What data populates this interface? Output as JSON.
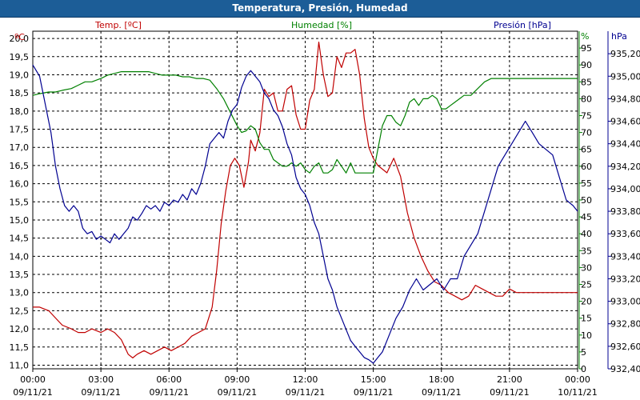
{
  "window": {
    "title": "Temperatura, Presión, Humedad"
  },
  "colors": {
    "temperature": "#c00000",
    "humidity": "#008000",
    "pressure": "#000090",
    "grid": "#000000"
  },
  "chart_data": {
    "type": "line",
    "title": "Temperatura, Presión, Humedad",
    "x_axis": {
      "range_hours": [
        0,
        24
      ],
      "ticks": [
        {
          "time": "00:00",
          "date": "09/11/21"
        },
        {
          "time": "03:00",
          "date": "09/11/21"
        },
        {
          "time": "06:00",
          "date": "09/11/21"
        },
        {
          "time": "09:00",
          "date": "09/11/21"
        },
        {
          "time": "12:00",
          "date": "09/11/21"
        },
        {
          "time": "15:00",
          "date": "09/11/21"
        },
        {
          "time": "18:00",
          "date": "09/11/21"
        },
        {
          "time": "21:00",
          "date": "09/11/21"
        },
        {
          "time": "00:00",
          "date": "10/11/21"
        }
      ]
    },
    "axes": {
      "temperature": {
        "label": "Temp. [ºC]",
        "unit": "ºC",
        "ylim": [
          10.9,
          20.2
        ],
        "ticks": [
          "11,0",
          "11,5",
          "12,0",
          "12,5",
          "13,0",
          "13,5",
          "14,0",
          "14,5",
          "15,0",
          "15,5",
          "16,0",
          "16,5",
          "17,0",
          "17,5",
          "18,0",
          "18,5",
          "19,0",
          "19,5",
          "20,0"
        ]
      },
      "humidity": {
        "label": "Humedad [%]",
        "unit": "%",
        "ylim": [
          0,
          100
        ],
        "ticks": [
          "0",
          "5",
          "10",
          "15",
          "20",
          "25",
          "30",
          "35",
          "40",
          "45",
          "50",
          "55",
          "60",
          "65",
          "70",
          "75",
          "80",
          "85",
          "90",
          "95"
        ]
      },
      "pressure": {
        "label": "Presión [hPa]",
        "unit": "hPa",
        "ylim": [
          932.4,
          935.4
        ],
        "ticks": [
          "932,40",
          "932,60",
          "932,80",
          "933,00",
          "933,20",
          "933,40",
          "933,60",
          "933,80",
          "934,00",
          "934,20",
          "934,40",
          "934,60",
          "934,80",
          "935,00",
          "935,20"
        ]
      }
    },
    "series": [
      {
        "name": "Temp. [ºC]",
        "axis": "temperature",
        "x": [
          0,
          0.3,
          0.7,
          1.0,
          1.3,
          1.7,
          2.0,
          2.3,
          2.6,
          3.0,
          3.3,
          3.6,
          3.9,
          4.2,
          4.4,
          4.6,
          4.9,
          5.2,
          5.5,
          5.8,
          6.1,
          6.4,
          6.7,
          7.0,
          7.3,
          7.6,
          7.9,
          8.1,
          8.3,
          8.5,
          8.7,
          8.9,
          9.1,
          9.3,
          9.5,
          9.6,
          9.8,
          10.0,
          10.2,
          10.4,
          10.6,
          10.8,
          11.0,
          11.2,
          11.4,
          11.6,
          11.8,
          12.0,
          12.2,
          12.4,
          12.6,
          12.8,
          13.0,
          13.2,
          13.4,
          13.6,
          13.8,
          14.0,
          14.2,
          14.4,
          14.6,
          14.8,
          15.0,
          15.2,
          15.4,
          15.6,
          15.9,
          16.2,
          16.5,
          16.8,
          17.1,
          17.4,
          17.7,
          18.0,
          18.3,
          18.6,
          18.9,
          19.2,
          19.5,
          19.8,
          20.1,
          20.4,
          20.7,
          21.0,
          21.3,
          21.6,
          21.9,
          22.2,
          22.5,
          22.8,
          23.1,
          23.4,
          23.7,
          24.0
        ],
        "values": [
          12.6,
          12.6,
          12.5,
          12.3,
          12.1,
          12.0,
          11.9,
          11.9,
          12.0,
          11.9,
          12.0,
          11.9,
          11.7,
          11.3,
          11.2,
          11.3,
          11.4,
          11.3,
          11.4,
          11.5,
          11.4,
          11.5,
          11.6,
          11.8,
          11.9,
          12.0,
          12.6,
          13.6,
          14.9,
          15.8,
          16.5,
          16.7,
          16.5,
          15.9,
          16.6,
          17.2,
          16.9,
          17.4,
          18.6,
          18.4,
          18.5,
          18.0,
          18.0,
          18.6,
          18.7,
          17.9,
          17.5,
          17.5,
          18.3,
          18.6,
          19.9,
          19.0,
          18.4,
          18.5,
          19.5,
          19.2,
          19.6,
          19.6,
          19.7,
          19.0,
          17.8,
          17.0,
          16.7,
          16.5,
          16.4,
          16.3,
          16.7,
          16.2,
          15.2,
          14.5,
          14.0,
          13.6,
          13.3,
          13.2,
          13.0,
          12.9,
          12.8,
          12.9,
          13.2,
          13.1,
          13.0,
          12.9,
          12.9,
          13.1,
          13.0,
          13.0,
          13.0,
          13.0,
          13.0,
          13.0,
          13.0,
          13.0,
          13.0,
          13.0
        ]
      },
      {
        "name": "Humedad [%]",
        "axis": "humidity",
        "x": [
          0,
          0.3,
          0.7,
          1.0,
          1.3,
          1.7,
          2.0,
          2.3,
          2.6,
          3.0,
          3.3,
          3.6,
          3.9,
          4.2,
          4.5,
          4.8,
          5.1,
          5.4,
          5.7,
          6.0,
          6.3,
          6.6,
          6.9,
          7.2,
          7.5,
          7.8,
          8.1,
          8.4,
          8.7,
          9.0,
          9.2,
          9.4,
          9.6,
          9.8,
          10.0,
          10.2,
          10.4,
          10.6,
          10.8,
          11.0,
          11.2,
          11.4,
          11.6,
          11.8,
          12.0,
          12.2,
          12.4,
          12.6,
          12.8,
          13.0,
          13.2,
          13.4,
          13.6,
          13.8,
          14.0,
          14.2,
          14.4,
          14.6,
          14.8,
          15.0,
          15.2,
          15.4,
          15.6,
          15.8,
          16.0,
          16.2,
          16.4,
          16.6,
          16.8,
          17.0,
          17.2,
          17.4,
          17.6,
          17.8,
          18.0,
          18.2,
          18.4,
          18.6,
          18.8,
          19.0,
          19.3,
          19.6,
          19.9,
          20.2,
          20.5,
          20.8,
          21.1,
          21.4,
          21.7,
          22.0,
          22.3,
          22.6,
          22.9,
          23.2,
          23.5,
          23.8,
          24.0
        ],
        "values": [
          81,
          81.5,
          82,
          82,
          82.5,
          83,
          84,
          85,
          85,
          86,
          87,
          87.5,
          88,
          88,
          88,
          88,
          88,
          87.5,
          87,
          87,
          87,
          86.5,
          86.5,
          86,
          86,
          85.5,
          83,
          80,
          76,
          72,
          70,
          70.5,
          72,
          71,
          67,
          65,
          65,
          62,
          61,
          60,
          60,
          61,
          60,
          61,
          59,
          58,
          60,
          61,
          58,
          58,
          59,
          62,
          60,
          58,
          61,
          58,
          58,
          58,
          58,
          58,
          65,
          72,
          75,
          75,
          73,
          72,
          75,
          79,
          80,
          78,
          80,
          80,
          81,
          80,
          77,
          77,
          78,
          79,
          80,
          81,
          81,
          83,
          85,
          86,
          86,
          86,
          86,
          86,
          86,
          86,
          86,
          86,
          86,
          86,
          86,
          86,
          86
        ]
      },
      {
        "name": "Presión [hPa]",
        "axis": "pressure",
        "x": [
          0,
          0.3,
          0.5,
          0.8,
          1.0,
          1.2,
          1.4,
          1.6,
          1.8,
          2.0,
          2.2,
          2.4,
          2.6,
          2.8,
          3.0,
          3.2,
          3.4,
          3.6,
          3.8,
          4.0,
          4.2,
          4.4,
          4.6,
          4.8,
          5.0,
          5.2,
          5.4,
          5.6,
          5.8,
          6.0,
          6.2,
          6.4,
          6.6,
          6.8,
          7.0,
          7.2,
          7.4,
          7.6,
          7.8,
          8.0,
          8.2,
          8.4,
          8.6,
          8.8,
          9.0,
          9.2,
          9.4,
          9.6,
          9.8,
          10.0,
          10.2,
          10.4,
          10.6,
          10.8,
          11.0,
          11.2,
          11.4,
          11.6,
          11.8,
          12.0,
          12.2,
          12.4,
          12.6,
          12.8,
          13.0,
          13.2,
          13.4,
          13.6,
          13.8,
          14.0,
          14.2,
          14.4,
          14.6,
          14.8,
          15.0,
          15.2,
          15.4,
          15.6,
          15.8,
          16.0,
          16.3,
          16.6,
          16.9,
          17.2,
          17.5,
          17.8,
          18.1,
          18.4,
          18.7,
          19.0,
          19.3,
          19.6,
          19.9,
          20.2,
          20.5,
          20.8,
          21.1,
          21.4,
          21.7,
          22.0,
          22.3,
          22.6,
          22.9,
          23.2,
          23.5,
          23.8,
          24.0
        ],
        "values": [
          935.1,
          935.0,
          934.8,
          934.5,
          934.2,
          934.0,
          933.85,
          933.8,
          933.85,
          933.8,
          933.65,
          933.6,
          933.62,
          933.55,
          933.58,
          933.55,
          933.52,
          933.6,
          933.55,
          933.6,
          933.65,
          933.75,
          933.72,
          933.78,
          933.85,
          933.82,
          933.85,
          933.8,
          933.88,
          933.85,
          933.9,
          933.88,
          933.95,
          933.9,
          934.0,
          933.95,
          934.05,
          934.2,
          934.4,
          934.45,
          934.5,
          934.45,
          934.6,
          934.7,
          934.75,
          934.9,
          935.0,
          935.05,
          935.0,
          934.95,
          934.85,
          934.8,
          934.7,
          934.65,
          934.55,
          934.4,
          934.3,
          934.1,
          934.0,
          933.95,
          933.85,
          933.7,
          933.6,
          933.4,
          933.2,
          933.1,
          932.95,
          932.85,
          932.75,
          932.65,
          932.6,
          932.55,
          932.5,
          932.48,
          932.45,
          932.5,
          932.55,
          932.65,
          932.75,
          932.85,
          932.95,
          933.1,
          933.2,
          933.1,
          933.15,
          933.2,
          933.1,
          933.2,
          933.2,
          933.4,
          933.5,
          933.6,
          933.8,
          934.0,
          934.2,
          934.3,
          934.4,
          934.5,
          934.6,
          934.5,
          934.4,
          934.35,
          934.3,
          934.1,
          933.9,
          933.85,
          933.8
        ]
      }
    ]
  }
}
